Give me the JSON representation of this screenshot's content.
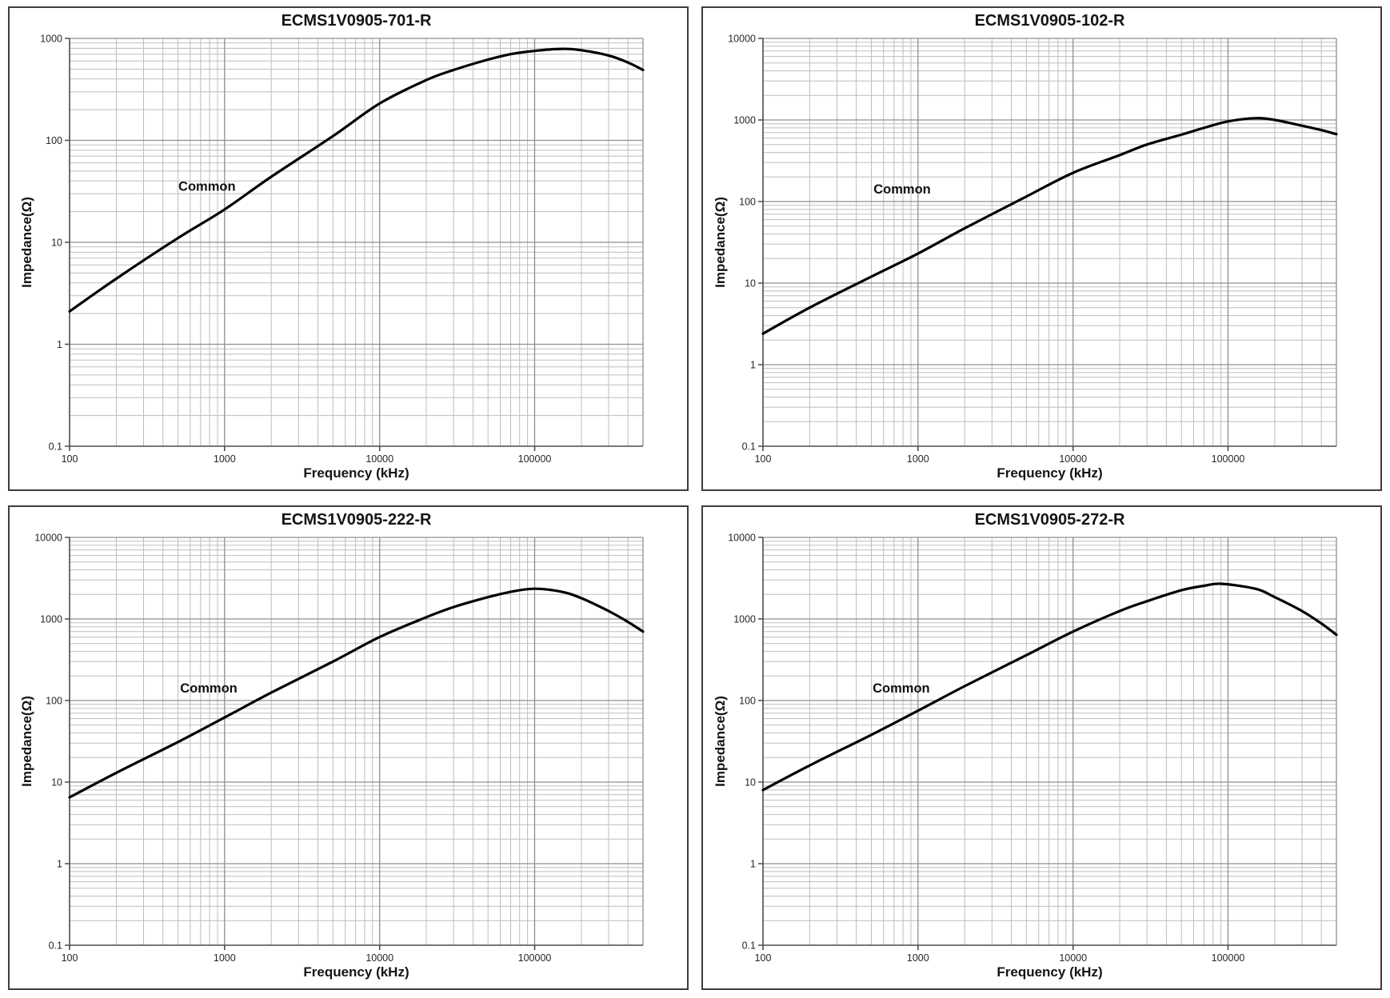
{
  "style": {
    "curve_color": "#000000",
    "grid_minor_color": "#bdbdbd",
    "grid_major_color": "#8f8f8f",
    "axis_color": "#4d4d4d",
    "frame_color": "#3d3d3d",
    "text_color": "#262626"
  },
  "chart_data": [
    {
      "type": "line",
      "title": "ECMS1V0905-701-R",
      "xlabel": "Frequency (kHz)",
      "ylabel": "Impedance(Ω)",
      "x_scale": "log",
      "y_scale": "log",
      "grid": "log-major-minor",
      "legend_position": "inline-annotation",
      "xlim": [
        100,
        500000
      ],
      "ylim": [
        0.1,
        1000
      ],
      "x_ticks": [
        100,
        1000,
        10000,
        100000
      ],
      "y_ticks": [
        1000,
        100,
        10,
        1,
        0.1
      ],
      "series": [
        {
          "name": "Common",
          "label_position": {
            "x": 770,
            "y": 35
          },
          "x": [
            100,
            200,
            500,
            1000,
            2000,
            5000,
            10000,
            20000,
            30000,
            50000,
            70000,
            100000,
            150000,
            200000,
            300000,
            400000,
            500000
          ],
          "y": [
            2.1,
            4.4,
            11,
            21,
            44,
            110,
            230,
            390,
            490,
            620,
            700,
            755,
            790,
            765,
            680,
            580,
            490
          ]
        }
      ]
    },
    {
      "type": "line",
      "title": "ECMS1V0905-102-R",
      "xlabel": "Frequency (kHz)",
      "ylabel": "Impedance(Ω)",
      "x_scale": "log",
      "y_scale": "log",
      "grid": "log-major-minor",
      "legend_position": "inline-annotation",
      "xlim": [
        100,
        500000
      ],
      "ylim": [
        0.1,
        10000
      ],
      "x_ticks": [
        100,
        1000,
        10000,
        100000
      ],
      "y_ticks": [
        10000,
        1000,
        100,
        10,
        1,
        0.1
      ],
      "series": [
        {
          "name": "Common",
          "label_position": {
            "x": 790,
            "y": 140
          },
          "x": [
            100,
            200,
            500,
            1000,
            2000,
            5000,
            10000,
            20000,
            30000,
            50000,
            70000,
            100000,
            150000,
            200000,
            300000,
            400000,
            500000
          ],
          "y": [
            2.4,
            5,
            12,
            23,
            47,
            115,
            225,
            370,
            500,
            660,
            800,
            960,
            1050,
            1000,
            850,
            750,
            670
          ]
        }
      ]
    },
    {
      "type": "line",
      "title": "ECMS1V0905-222-R",
      "xlabel": "Frequency (kHz)",
      "ylabel": "Impedance(Ω)",
      "x_scale": "log",
      "y_scale": "log",
      "grid": "log-major-minor",
      "legend_position": "inline-annotation",
      "xlim": [
        100,
        500000
      ],
      "ylim": [
        0.1,
        10000
      ],
      "x_ticks": [
        100,
        1000,
        10000,
        100000
      ],
      "y_ticks": [
        10000,
        1000,
        100,
        10,
        1,
        0.1
      ],
      "series": [
        {
          "name": "Common",
          "label_position": {
            "x": 790,
            "y": 140
          },
          "x": [
            100,
            200,
            500,
            1000,
            2000,
            5000,
            10000,
            20000,
            30000,
            50000,
            70000,
            100000,
            150000,
            200000,
            300000,
            400000,
            500000
          ],
          "y": [
            6.5,
            13,
            31,
            62,
            125,
            300,
            600,
            1050,
            1400,
            1850,
            2150,
            2350,
            2150,
            1800,
            1250,
            920,
            700
          ]
        }
      ]
    },
    {
      "type": "line",
      "title": "ECMS1V0905-272-R",
      "xlabel": "Frequency (kHz)",
      "ylabel": "Impedance(Ω)",
      "x_scale": "log",
      "y_scale": "log",
      "grid": "log-major-minor",
      "legend_position": "inline-annotation",
      "xlim": [
        100,
        500000
      ],
      "ylim": [
        0.1,
        10000
      ],
      "x_ticks": [
        100,
        1000,
        10000,
        100000
      ],
      "y_ticks": [
        10000,
        1000,
        100,
        10,
        1,
        0.1
      ],
      "series": [
        {
          "name": "Common",
          "label_position": {
            "x": 780,
            "y": 140
          },
          "x": [
            100,
            200,
            500,
            1000,
            2000,
            5000,
            10000,
            20000,
            30000,
            50000,
            70000,
            90000,
            150000,
            200000,
            300000,
            400000,
            500000
          ],
          "y": [
            8,
            16,
            38,
            75,
            150,
            360,
            700,
            1250,
            1650,
            2250,
            2550,
            2700,
            2350,
            1850,
            1250,
            880,
            640
          ]
        }
      ]
    }
  ]
}
